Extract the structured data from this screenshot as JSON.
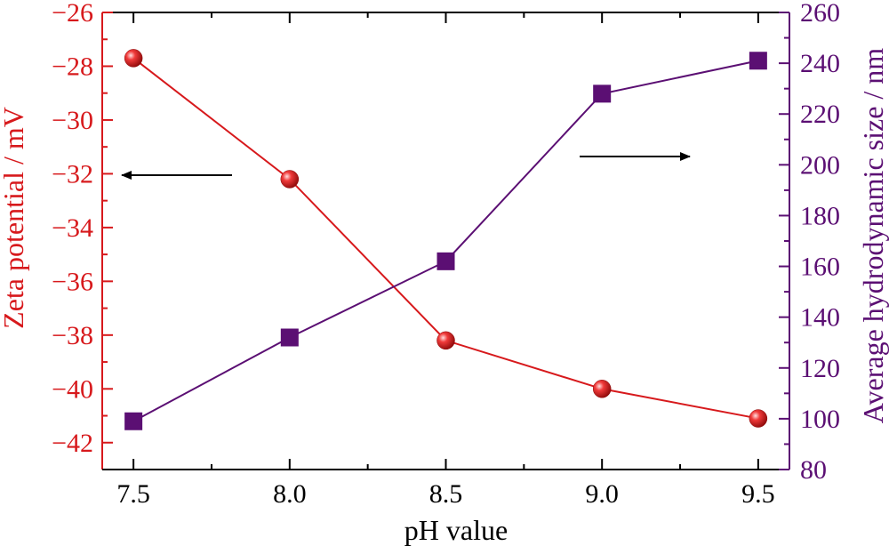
{
  "chart_data": {
    "type": "line",
    "xlabel": "pH value",
    "ylabel_left": "Zeta potential / mV",
    "ylabel_right": "Average hydrodynamic size / nm",
    "xlim": [
      7.4,
      9.6
    ],
    "ylim_left": [
      -43,
      -26
    ],
    "ylim_right": [
      80,
      260
    ],
    "x_ticks": [
      7.5,
      8.0,
      8.5,
      9.0,
      9.5
    ],
    "x_tick_labels": [
      "7.5",
      "8.0",
      "8.5",
      "9.0",
      "9.5"
    ],
    "y_left_ticks": [
      -42,
      -40,
      -38,
      -36,
      -34,
      -32,
      -30,
      -28,
      -26
    ],
    "y_left_tick_labels": [
      "−42",
      "−40",
      "−38",
      "−36",
      "−34",
      "−32",
      "−30",
      "−28",
      "−26"
    ],
    "y_right_ticks": [
      80,
      100,
      120,
      140,
      160,
      180,
      200,
      220,
      240,
      260
    ],
    "y_right_tick_labels": [
      "80",
      "100",
      "120",
      "140",
      "160",
      "180",
      "200",
      "220",
      "240",
      "260"
    ],
    "x": [
      7.5,
      8.0,
      8.5,
      9.0,
      9.5
    ],
    "series": [
      {
        "axis": "left",
        "marker": "sphere",
        "color": "#d7191c",
        "values": [
          -27.7,
          -32.2,
          -38.2,
          -40.0,
          -41.1
        ]
      },
      {
        "axis": "right",
        "marker": "square",
        "color": "#5b0f73",
        "values": [
          99,
          132,
          162,
          228,
          241
        ]
      }
    ],
    "annotations": [
      {
        "type": "arrow",
        "direction": "left",
        "points_to": "left-axis"
      },
      {
        "type": "arrow",
        "direction": "right",
        "points_to": "right-axis"
      }
    ],
    "colors": {
      "left_axis": "#d7191c",
      "right_axis": "#5b0f73",
      "frame": "#000000"
    },
    "grid": false
  }
}
